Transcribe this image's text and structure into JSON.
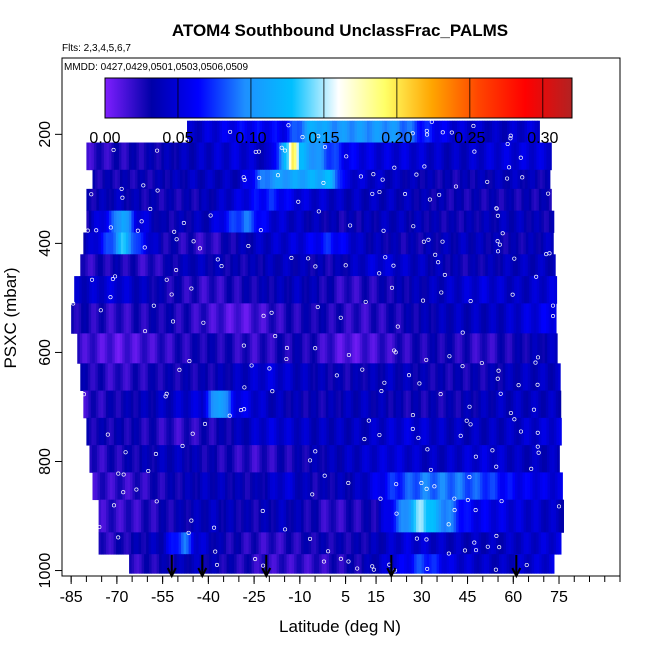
{
  "chart_data": {
    "type": "heatmap",
    "title": "ATOM4 Southbound UnclassFrac_PALMS",
    "flights_note": "Flts: 2,3,4,5,6,7",
    "dates_note": "MMDD: 0427,0429,0501,0503,0506,0509",
    "xlabel": "Latitude (deg N)",
    "ylabel": "PSXC (mbar)",
    "xlim": [
      -88,
      95
    ],
    "ylim": [
      1010,
      60
    ],
    "x_ticks": [
      -85,
      -70,
      -55,
      -40,
      -25,
      -10,
      5,
      15,
      30,
      45,
      60,
      75
    ],
    "x_tick_labels": [
      "-85",
      "-70",
      "-55",
      "-40",
      "-25",
      "-10",
      "5",
      "15",
      "30",
      "45",
      "60",
      "75"
    ],
    "y_ticks": [
      200,
      400,
      600,
      800,
      1000
    ],
    "y_tick_labels": [
      "200",
      "400",
      "600",
      "800",
      "1000"
    ],
    "colorbar": {
      "min": 0.0,
      "max": 0.32,
      "ticks": [
        0.0,
        0.05,
        0.1,
        0.15,
        0.2,
        0.25,
        0.3
      ],
      "tick_labels": [
        "0.00",
        "0.05",
        "0.10",
        "0.15",
        "0.20",
        "0.25",
        "0.30"
      ],
      "colors": [
        "#7f1fff",
        "#0000a8",
        "#0000ff",
        "#1e90ff",
        "#00bfff",
        "#ffffff",
        "#ffff66",
        "#ffa500",
        "#ff4500",
        "#ff0000",
        "#b22222"
      ]
    },
    "arrows_latitude": [
      -52,
      -42,
      -21,
      20,
      61
    ],
    "rows": [
      {
        "p_top": 175,
        "p_bot": 215,
        "lat_start": -47,
        "lat_end": 68,
        "values": [
          [
            -47,
            0.04
          ],
          [
            -30,
            0.06
          ],
          [
            -15,
            0.06
          ],
          [
            -5,
            0.12
          ],
          [
            0,
            0.1
          ],
          [
            10,
            0.1
          ],
          [
            20,
            0.1
          ],
          [
            25,
            0.09
          ],
          [
            30,
            0.07
          ],
          [
            40,
            0.05
          ],
          [
            55,
            0.04
          ],
          [
            68,
            0.05
          ]
        ]
      },
      {
        "p_top": 215,
        "p_bot": 265,
        "lat_start": -80,
        "lat_end": 72,
        "values": [
          [
            -80,
            0.02
          ],
          [
            -60,
            0.03
          ],
          [
            -45,
            0.04
          ],
          [
            -30,
            0.05
          ],
          [
            -20,
            0.04
          ],
          [
            -14,
            0.13
          ],
          [
            -12,
            0.22
          ],
          [
            -10,
            0.12
          ],
          [
            -5,
            0.1
          ],
          [
            5,
            0.06
          ],
          [
            15,
            0.05
          ],
          [
            25,
            0.05
          ],
          [
            40,
            0.04
          ],
          [
            55,
            0.05
          ],
          [
            72,
            0.05
          ]
        ]
      },
      {
        "p_top": 265,
        "p_bot": 300,
        "lat_start": -78,
        "lat_end": 72,
        "values": [
          [
            -78,
            0.03
          ],
          [
            -60,
            0.03
          ],
          [
            -45,
            0.04
          ],
          [
            -30,
            0.04
          ],
          [
            -20,
            0.1
          ],
          [
            -10,
            0.11
          ],
          [
            0,
            0.12
          ],
          [
            5,
            0.05
          ],
          [
            20,
            0.04
          ],
          [
            40,
            0.03
          ],
          [
            60,
            0.04
          ],
          [
            72,
            0.03
          ]
        ]
      },
      {
        "p_top": 300,
        "p_bot": 340,
        "lat_start": -80,
        "lat_end": 72,
        "values": [
          [
            -80,
            0.03
          ],
          [
            -70,
            0.04
          ],
          [
            -60,
            0.03
          ],
          [
            -45,
            0.03
          ],
          [
            -30,
            0.05
          ],
          [
            -20,
            0.07
          ],
          [
            -10,
            0.05
          ],
          [
            5,
            0.04
          ],
          [
            20,
            0.04
          ],
          [
            40,
            0.03
          ],
          [
            60,
            0.03
          ],
          [
            72,
            0.03
          ]
        ]
      },
      {
        "p_top": 340,
        "p_bot": 380,
        "lat_start": -80,
        "lat_end": 73,
        "values": [
          [
            -80,
            0.03
          ],
          [
            -72,
            0.07
          ],
          [
            -68,
            0.12
          ],
          [
            -64,
            0.06
          ],
          [
            -55,
            0.03
          ],
          [
            -40,
            0.04
          ],
          [
            -28,
            0.09
          ],
          [
            -20,
            0.05
          ],
          [
            -10,
            0.04
          ],
          [
            5,
            0.03
          ],
          [
            20,
            0.04
          ],
          [
            40,
            0.03
          ],
          [
            60,
            0.04
          ],
          [
            73,
            0.03
          ]
        ]
      },
      {
        "p_top": 380,
        "p_bot": 420,
        "lat_start": -81,
        "lat_end": 73,
        "values": [
          [
            -81,
            0.03
          ],
          [
            -72,
            0.08
          ],
          [
            -68,
            0.13
          ],
          [
            -63,
            0.07
          ],
          [
            -55,
            0.03
          ],
          [
            -40,
            0.02
          ],
          [
            -25,
            0.04
          ],
          [
            -10,
            0.05
          ],
          [
            0,
            0.07
          ],
          [
            10,
            0.04
          ],
          [
            25,
            0.03
          ],
          [
            45,
            0.04
          ],
          [
            60,
            0.03
          ],
          [
            73,
            0.04
          ]
        ]
      },
      {
        "p_top": 420,
        "p_bot": 460,
        "lat_start": -82,
        "lat_end": 73,
        "values": [
          [
            -82,
            0.02
          ],
          [
            -70,
            0.03
          ],
          [
            -60,
            0.02
          ],
          [
            -45,
            0.04
          ],
          [
            -30,
            0.03
          ],
          [
            -15,
            0.04
          ],
          [
            0,
            0.03
          ],
          [
            15,
            0.05
          ],
          [
            30,
            0.04
          ],
          [
            45,
            0.03
          ],
          [
            60,
            0.04
          ],
          [
            73,
            0.04
          ]
        ]
      },
      {
        "p_top": 460,
        "p_bot": 510,
        "lat_start": -84,
        "lat_end": 74,
        "values": [
          [
            -84,
            0.04
          ],
          [
            -70,
            0.05
          ],
          [
            -55,
            0.03
          ],
          [
            -40,
            0.02
          ],
          [
            -25,
            0.03
          ],
          [
            -10,
            0.04
          ],
          [
            5,
            0.02
          ],
          [
            20,
            0.03
          ],
          [
            35,
            0.04
          ],
          [
            50,
            0.05
          ],
          [
            62,
            0.04
          ],
          [
            74,
            0.05
          ]
        ]
      },
      {
        "p_top": 510,
        "p_bot": 565,
        "lat_start": -85,
        "lat_end": 74,
        "values": [
          [
            -85,
            0.03
          ],
          [
            -70,
            0.02
          ],
          [
            -55,
            0.03
          ],
          [
            -42,
            0.02
          ],
          [
            -30,
            0.01
          ],
          [
            -20,
            0.02
          ],
          [
            -5,
            0.03
          ],
          [
            10,
            0.02
          ],
          [
            25,
            0.03
          ],
          [
            40,
            0.04
          ],
          [
            55,
            0.04
          ],
          [
            74,
            0.06
          ]
        ]
      },
      {
        "p_top": 565,
        "p_bot": 620,
        "lat_start": -83,
        "lat_end": 74,
        "values": [
          [
            -83,
            0.02
          ],
          [
            -70,
            0.01
          ],
          [
            -55,
            0.02
          ],
          [
            -40,
            0.03
          ],
          [
            -25,
            0.02
          ],
          [
            -10,
            0.03
          ],
          [
            5,
            0.01
          ],
          [
            20,
            0.02
          ],
          [
            35,
            0.03
          ],
          [
            50,
            0.02
          ],
          [
            62,
            0.03
          ],
          [
            74,
            0.04
          ]
        ]
      },
      {
        "p_top": 620,
        "p_bot": 670,
        "lat_start": -82,
        "lat_end": 75,
        "values": [
          [
            -82,
            0.03
          ],
          [
            -70,
            0.02
          ],
          [
            -55,
            0.03
          ],
          [
            -40,
            0.03
          ],
          [
            -30,
            0.04
          ],
          [
            -20,
            0.05
          ],
          [
            -10,
            0.04
          ],
          [
            5,
            0.03
          ],
          [
            20,
            0.04
          ],
          [
            35,
            0.03
          ],
          [
            50,
            0.03
          ],
          [
            62,
            0.04
          ],
          [
            75,
            0.04
          ]
        ]
      },
      {
        "p_top": 670,
        "p_bot": 720,
        "lat_start": -81,
        "lat_end": 75,
        "values": [
          [
            -81,
            0.02
          ],
          [
            -70,
            0.03
          ],
          [
            -55,
            0.04
          ],
          [
            -42,
            0.05
          ],
          [
            -36,
            0.12
          ],
          [
            -32,
            0.06
          ],
          [
            -20,
            0.04
          ],
          [
            -5,
            0.03
          ],
          [
            10,
            0.04
          ],
          [
            25,
            0.03
          ],
          [
            40,
            0.03
          ],
          [
            55,
            0.04
          ],
          [
            75,
            0.04
          ]
        ]
      },
      {
        "p_top": 720,
        "p_bot": 770,
        "lat_start": -80,
        "lat_end": 75,
        "values": [
          [
            -80,
            0.03
          ],
          [
            -65,
            0.03
          ],
          [
            -50,
            0.02
          ],
          [
            -35,
            0.03
          ],
          [
            -20,
            0.05
          ],
          [
            -5,
            0.04
          ],
          [
            10,
            0.04
          ],
          [
            25,
            0.05
          ],
          [
            40,
            0.04
          ],
          [
            55,
            0.04
          ],
          [
            75,
            0.05
          ]
        ]
      },
      {
        "p_top": 770,
        "p_bot": 820,
        "lat_start": -79,
        "lat_end": 75,
        "values": [
          [
            -79,
            0.02
          ],
          [
            -65,
            0.03
          ],
          [
            -52,
            0.04
          ],
          [
            -40,
            0.03
          ],
          [
            -25,
            0.02
          ],
          [
            -10,
            0.03
          ],
          [
            5,
            0.04
          ],
          [
            20,
            0.05
          ],
          [
            35,
            0.04
          ],
          [
            50,
            0.05
          ],
          [
            62,
            0.04
          ],
          [
            75,
            0.04
          ]
        ]
      },
      {
        "p_top": 820,
        "p_bot": 870,
        "lat_start": -78,
        "lat_end": 76,
        "values": [
          [
            -78,
            0.02
          ],
          [
            -65,
            0.02
          ],
          [
            -52,
            0.03
          ],
          [
            -40,
            0.04
          ],
          [
            -25,
            0.03
          ],
          [
            -15,
            0.05
          ],
          [
            -5,
            0.03
          ],
          [
            10,
            0.04
          ],
          [
            20,
            0.07
          ],
          [
            30,
            0.09
          ],
          [
            40,
            0.09
          ],
          [
            50,
            0.08
          ],
          [
            60,
            0.06
          ],
          [
            76,
            0.05
          ]
        ]
      },
      {
        "p_top": 870,
        "p_bot": 930,
        "lat_start": -76,
        "lat_end": 76,
        "values": [
          [
            -76,
            0.02
          ],
          [
            -65,
            0.02
          ],
          [
            -52,
            0.03
          ],
          [
            -40,
            0.04
          ],
          [
            -25,
            0.03
          ],
          [
            -15,
            0.04
          ],
          [
            0,
            0.02
          ],
          [
            15,
            0.03
          ],
          [
            25,
            0.1
          ],
          [
            30,
            0.15
          ],
          [
            35,
            0.11
          ],
          [
            45,
            0.06
          ],
          [
            60,
            0.05
          ],
          [
            76,
            0.04
          ]
        ]
      },
      {
        "p_top": 930,
        "p_bot": 970,
        "lat_start": -76,
        "lat_end": 75,
        "values": [
          [
            -76,
            0.02
          ],
          [
            -65,
            0.03
          ],
          [
            -55,
            0.04
          ],
          [
            -48,
            0.09
          ],
          [
            -44,
            0.05
          ],
          [
            -35,
            0.03
          ],
          [
            -20,
            0.02
          ],
          [
            -5,
            0.03
          ],
          [
            10,
            0.03
          ],
          [
            25,
            0.05
          ],
          [
            40,
            0.04
          ],
          [
            55,
            0.04
          ],
          [
            75,
            0.05
          ]
        ]
      },
      {
        "p_top": 970,
        "p_bot": 1005,
        "lat_start": -66,
        "lat_end": 73,
        "values": [
          [
            -66,
            0.02
          ],
          [
            -55,
            0.03
          ],
          [
            -45,
            0.04
          ],
          [
            -35,
            0.03
          ],
          [
            -20,
            0.02
          ],
          [
            -5,
            0.02
          ],
          [
            10,
            0.03
          ],
          [
            25,
            0.06
          ],
          [
            30,
            0.08
          ],
          [
            40,
            0.05
          ],
          [
            55,
            0.04
          ],
          [
            73,
            0.05
          ]
        ]
      }
    ]
  }
}
